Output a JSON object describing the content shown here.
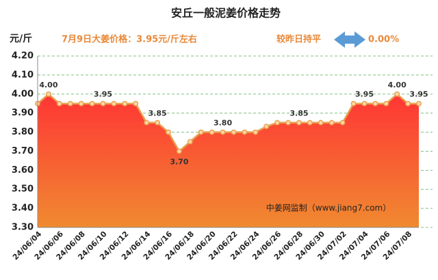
{
  "chart_data": {
    "type": "area-line",
    "title": "安丘一般泥姜价格走势",
    "y_unit": "元/斤",
    "annotation": "7月9日大姜价格：3.95元/斤左右",
    "change_text": "较昨日持平",
    "change_value": "0.00%",
    "watermark": "中姜网监制（www.jiang7.com）",
    "categories": [
      "24/06/04",
      null,
      "24/06/06",
      null,
      "24/06/08",
      null,
      "24/06/10",
      null,
      "24/06/12",
      null,
      "24/06/14",
      null,
      "24/06/16",
      null,
      "24/06/18",
      null,
      "24/06/20",
      null,
      "24/06/22",
      null,
      "24/06/24",
      null,
      "24/06/26",
      null,
      "24/06/28",
      null,
      "24/06/30",
      null,
      "24/07/02",
      null,
      "24/07/04",
      null,
      "24/07/06",
      null,
      "24/07/08",
      null
    ],
    "values": [
      3.95,
      4.0,
      3.95,
      3.95,
      3.95,
      3.95,
      3.95,
      3.95,
      3.95,
      3.95,
      3.85,
      3.85,
      3.8,
      3.7,
      3.75,
      3.8,
      3.8,
      3.8,
      3.8,
      3.8,
      3.8,
      3.83,
      3.85,
      3.85,
      3.85,
      3.85,
      3.85,
      3.85,
      3.85,
      3.95,
      3.95,
      3.95,
      3.95,
      4.0,
      3.95,
      3.95
    ],
    "value_labels": [
      null,
      "4.00",
      null,
      null,
      null,
      null,
      "3.95",
      null,
      null,
      null,
      null,
      "3.85",
      null,
      "3.70",
      null,
      null,
      null,
      "3.80",
      null,
      null,
      null,
      null,
      null,
      null,
      "3.85",
      null,
      null,
      null,
      null,
      null,
      "3.95",
      null,
      null,
      "4.00",
      null,
      "3.95"
    ],
    "color": "#e8a050",
    "ylim": [
      3.3,
      4.2
    ],
    "yticks": [
      {
        "value": 3.3,
        "label": "3.30"
      },
      {
        "value": 3.4,
        "label": "3.40"
      },
      {
        "value": 3.5,
        "label": "3.50"
      },
      {
        "value": 3.6,
        "label": "3.60"
      },
      {
        "value": 3.7,
        "label": "3.70"
      },
      {
        "value": 3.8,
        "label": "3.80"
      },
      {
        "value": 3.9,
        "label": "3.90"
      },
      {
        "value": 4.0,
        "label": "4.00"
      },
      {
        "value": 4.1,
        "label": "4.10"
      },
      {
        "value": 4.2,
        "label": "4.20"
      }
    ],
    "grid": true
  }
}
